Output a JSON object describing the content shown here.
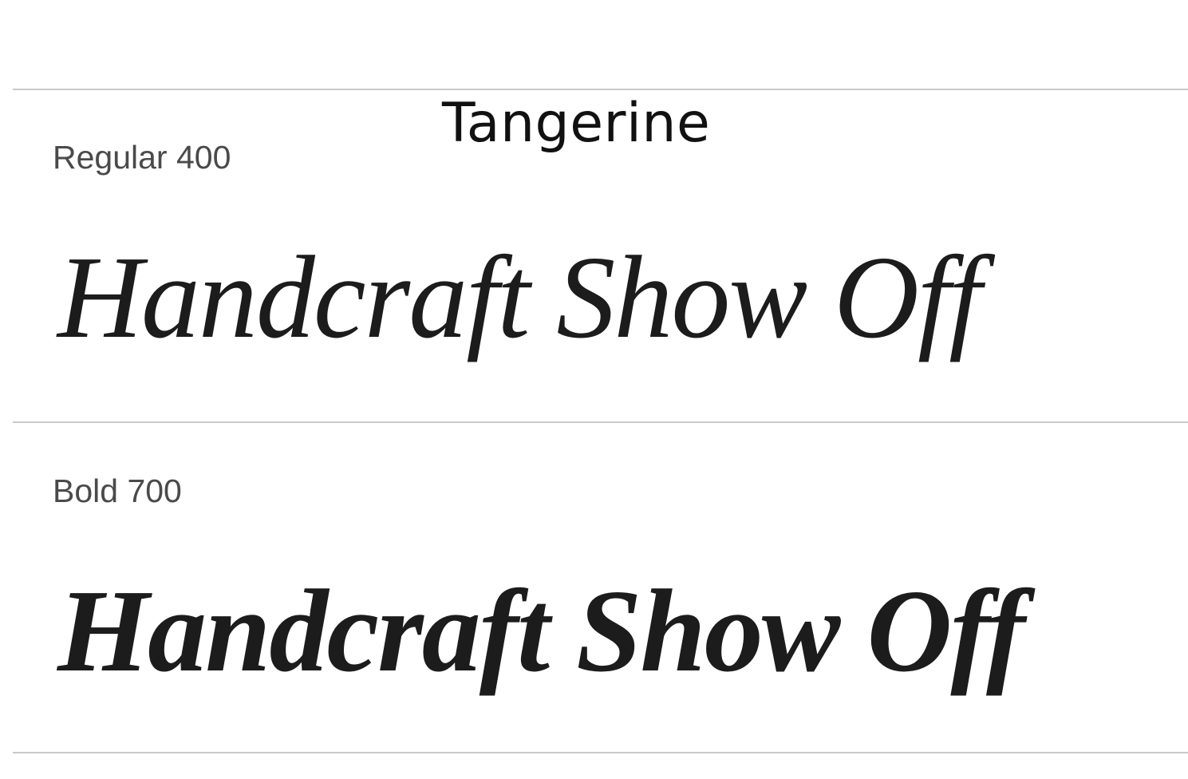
{
  "font_name": "Tangerine",
  "styles": [
    {
      "label": "Regular 400",
      "sample_text": "Handcraft Show Off"
    },
    {
      "label": "Bold 700",
      "sample_text": "Handcraft Show Off"
    }
  ],
  "colors": {
    "background": "#ffffff",
    "divider": "#c9c9c9",
    "label_text": "#4a4a4a",
    "sample_text": "#1c1c1c",
    "title_text": "#111111"
  }
}
